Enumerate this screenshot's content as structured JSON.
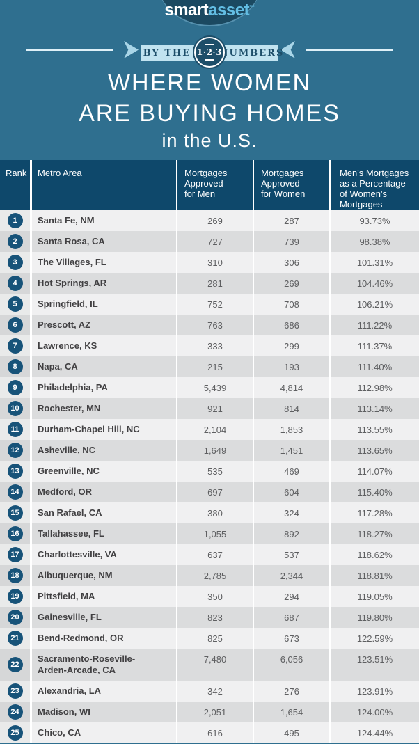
{
  "brand": {
    "smart": "smart",
    "asset": "asset",
    "trademark": "™"
  },
  "banner": {
    "left": "BY THE",
    "right": "NUMBERS",
    "circle": "1·2·3"
  },
  "title": {
    "line1": "WHERE WOMEN",
    "line2": "ARE BUYING HOMES",
    "line3": "in the U.S."
  },
  "table": {
    "header_display": [
      "Rank",
      "Metro Area",
      "Mortgages\nApproved\nfor Men",
      "Mortgages\nApproved\nfor Women",
      "Men's Mortgages\nas a Percentage\nof Women's\nMortgages"
    ],
    "display_overrides": {
      "metro_22": "Sacramento-Roseville-\nArden-Arcade, CA"
    }
  },
  "chart_data": {
    "type": "table",
    "title": "Where Women Are Buying Homes in the U.S.",
    "columns": [
      "Rank",
      "Metro Area",
      "Mortgages Approved for Men",
      "Mortgages Approved for Women",
      "Men's Mortgages as a Percentage of Women's Mortgages"
    ],
    "rows": [
      [
        1,
        "Santa Fe, NM",
        269,
        287,
        93.73
      ],
      [
        2,
        "Santa Rosa, CA",
        727,
        739,
        98.38
      ],
      [
        3,
        "The Villages, FL",
        310,
        306,
        101.31
      ],
      [
        4,
        "Hot Springs, AR",
        281,
        269,
        104.46
      ],
      [
        5,
        "Springfield, IL",
        752,
        708,
        106.21
      ],
      [
        6,
        "Prescott, AZ",
        763,
        686,
        111.22
      ],
      [
        7,
        "Lawrence, KS",
        333,
        299,
        111.37
      ],
      [
        8,
        "Napa, CA",
        215,
        193,
        111.4
      ],
      [
        9,
        "Philadelphia, PA",
        5439,
        4814,
        112.98
      ],
      [
        10,
        "Rochester, MN",
        921,
        814,
        113.14
      ],
      [
        11,
        "Durham-Chapel Hill, NC",
        2104,
        1853,
        113.55
      ],
      [
        12,
        "Asheville, NC",
        1649,
        1451,
        113.65
      ],
      [
        13,
        "Greenville, NC",
        535,
        469,
        114.07
      ],
      [
        14,
        "Medford, OR",
        697,
        604,
        115.4
      ],
      [
        15,
        "San Rafael, CA",
        380,
        324,
        117.28
      ],
      [
        16,
        "Tallahassee, FL",
        1055,
        892,
        118.27
      ],
      [
        17,
        "Charlottesville, VA",
        637,
        537,
        118.62
      ],
      [
        18,
        "Albuquerque, NM",
        2785,
        2344,
        118.81
      ],
      [
        19,
        "Pittsfield, MA",
        350,
        294,
        119.05
      ],
      [
        20,
        "Gainesville, FL",
        823,
        687,
        119.8
      ],
      [
        21,
        "Bend-Redmond, OR",
        825,
        673,
        122.59
      ],
      [
        22,
        "Sacramento-Roseville-Arden-Arcade, CA",
        7480,
        6056,
        123.51
      ],
      [
        23,
        "Alexandria, LA",
        342,
        276,
        123.91
      ],
      [
        24,
        "Madison, WI",
        2051,
        1654,
        124.0
      ],
      [
        25,
        "Chico, CA",
        616,
        495,
        124.44
      ]
    ],
    "colors": {
      "background_teal": "#2f6f8f",
      "navy": "#1d4e69",
      "header_bg": "#0e486b",
      "badge_bg": "#175379",
      "ribbon_light_blue": "#c1e3f0",
      "row_light": "#f0f0f1",
      "row_dark": "#dbdcdd",
      "asset_blue": "#63bee4"
    }
  }
}
